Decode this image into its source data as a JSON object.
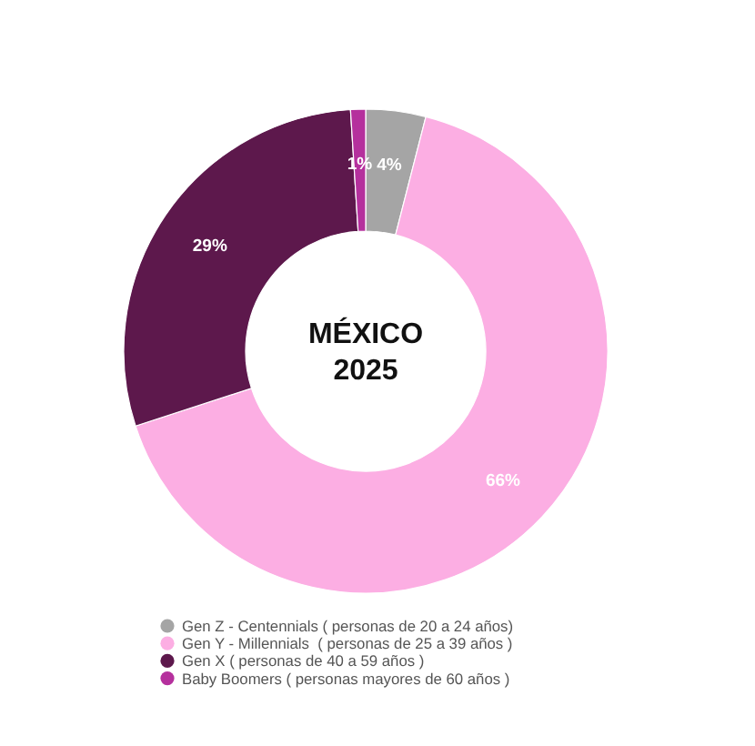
{
  "chart_data": {
    "type": "donut",
    "title": "MÉXICO\n2025",
    "categories": [
      "Gen Z - Centennials ( personas de 20 a 24 años)",
      "Gen Y - Millennials  ( personas de 25 a 39 años )",
      "Gen X ( personas de 40 a 59 años )",
      "Baby Boomers ( personas mayores de 60 años )"
    ],
    "values": [
      4,
      66,
      29,
      1
    ],
    "colors": [
      "#a5a5a5",
      "#fcaee3",
      "#5d184c",
      "#b5309d"
    ],
    "value_labels": [
      "4%",
      "66%",
      "29%",
      "1%"
    ],
    "legend": "bottom"
  }
}
